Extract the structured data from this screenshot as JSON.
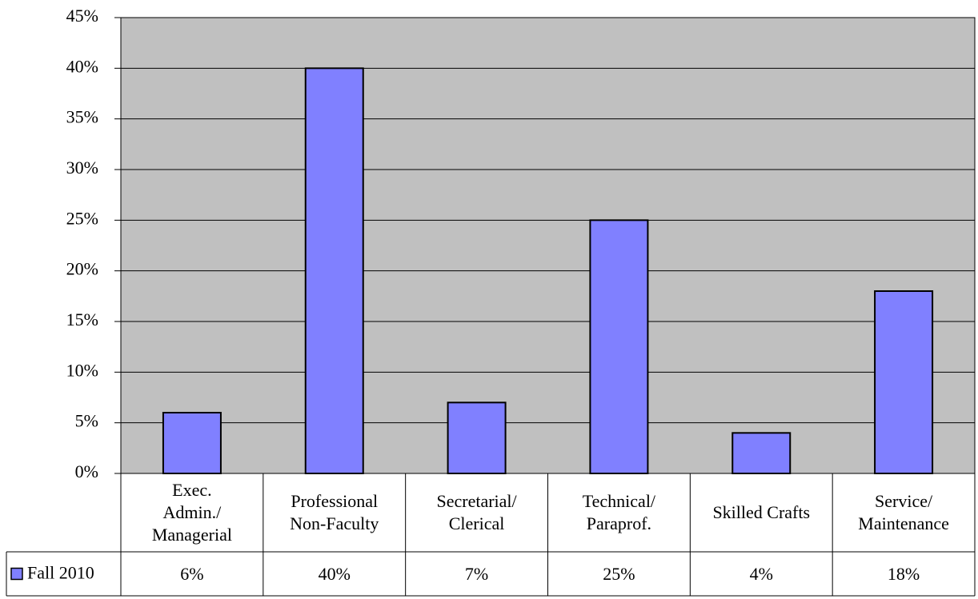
{
  "chart_data": {
    "type": "bar",
    "categories": [
      "Exec.\nAdmin./\nManagerial",
      "Professional\nNon-Faculty",
      "Secretarial/\nClerical",
      "Technical/\nParaprof.",
      "Skilled Crafts",
      "Service/\nMaintenance"
    ],
    "series": [
      {
        "name": "Fall 2010",
        "color": "#8080ff",
        "values": [
          6,
          40,
          7,
          25,
          4,
          18
        ],
        "value_labels": [
          "6%",
          "40%",
          "7%",
          "25%",
          "4%",
          "18%"
        ]
      }
    ],
    "ylim": [
      0,
      45
    ],
    "yticks": [
      {
        "value": 0,
        "label": "0%"
      },
      {
        "value": 5,
        "label": "5%"
      },
      {
        "value": 10,
        "label": "10%"
      },
      {
        "value": 15,
        "label": "15%"
      },
      {
        "value": 20,
        "label": "20%"
      },
      {
        "value": 25,
        "label": "25%"
      },
      {
        "value": 30,
        "label": "30%"
      },
      {
        "value": 35,
        "label": "35%"
      },
      {
        "value": 40,
        "label": "40%"
      },
      {
        "value": 45,
        "label": "45%"
      }
    ],
    "grid": true,
    "plot_background": "#c0c0c0"
  }
}
